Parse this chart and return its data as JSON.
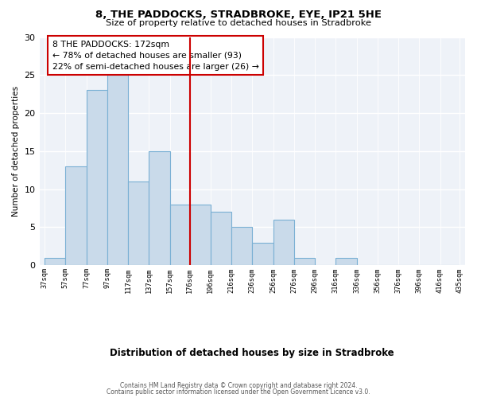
{
  "title": "8, THE PADDOCKS, STRADBROKE, EYE, IP21 5HE",
  "subtitle": "Size of property relative to detached houses in Stradbroke",
  "xlabel": "Distribution of detached houses by size in Stradbroke",
  "ylabel": "Number of detached properties",
  "bar_color": "#c9daea",
  "bar_edge_color": "#7ab0d4",
  "bins": [
    37,
    57,
    77,
    97,
    117,
    137,
    157,
    176,
    196,
    216,
    236,
    256,
    276,
    296,
    316,
    336,
    356,
    376,
    396,
    416,
    435
  ],
  "counts": [
    1,
    13,
    23,
    25,
    11,
    15,
    8,
    8,
    7,
    5,
    3,
    6,
    1,
    0,
    1,
    0,
    0,
    0,
    0,
    0
  ],
  "tick_labels": [
    "37sqm",
    "57sqm",
    "77sqm",
    "97sqm",
    "117sqm",
    "137sqm",
    "157sqm",
    "176sqm",
    "196sqm",
    "216sqm",
    "236sqm",
    "256sqm",
    "276sqm",
    "296sqm",
    "316sqm",
    "336sqm",
    "356sqm",
    "376sqm",
    "396sqm",
    "416sqm",
    "435sqm"
  ],
  "vline_x": 176,
  "vline_color": "#cc0000",
  "ylim": [
    0,
    30
  ],
  "yticks": [
    0,
    5,
    10,
    15,
    20,
    25,
    30
  ],
  "annotation_title": "8 THE PADDOCKS: 172sqm",
  "annotation_line1": "← 78% of detached houses are smaller (93)",
  "annotation_line2": "22% of semi-detached houses are larger (26) →",
  "footer1": "Contains HM Land Registry data © Crown copyright and database right 2024.",
  "footer2": "Contains public sector information licensed under the Open Government Licence v3.0.",
  "background_color": "#eef2f8"
}
